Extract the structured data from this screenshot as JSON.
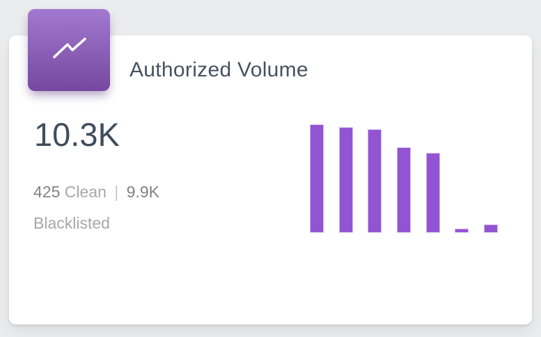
{
  "theme": {
    "page_bg": "#ebeced",
    "card_bg": "#ffffff",
    "icon_gradient_top": "#a279d0",
    "icon_gradient_bottom": "#76489f",
    "title_color": "#47525f",
    "metric_color": "#404d5c",
    "value_color": "#828282",
    "label_color": "#a7a7a7",
    "bar_fill": "#9254d2",
    "bar_border": "#d3b9ef"
  },
  "card": {
    "icon": "trending-up-icon",
    "title": "Authorized Volume",
    "metric": "10.3K",
    "stats": {
      "clean_value": "425",
      "clean_label": "Clean",
      "separator": "|",
      "blacklisted_value": "9.9K",
      "blacklisted_label": "Blacklisted"
    }
  },
  "chart_data": {
    "type": "bar",
    "values": [
      156,
      152,
      149,
      123,
      115,
      6,
      12
    ],
    "title": "",
    "xlabel": "",
    "ylabel": "",
    "ylim": [
      0,
      156
    ],
    "grid": false,
    "legend": false,
    "orientation": "vertical",
    "bar_color": "#9254d2",
    "bar_border_color": "#d3b9ef"
  }
}
